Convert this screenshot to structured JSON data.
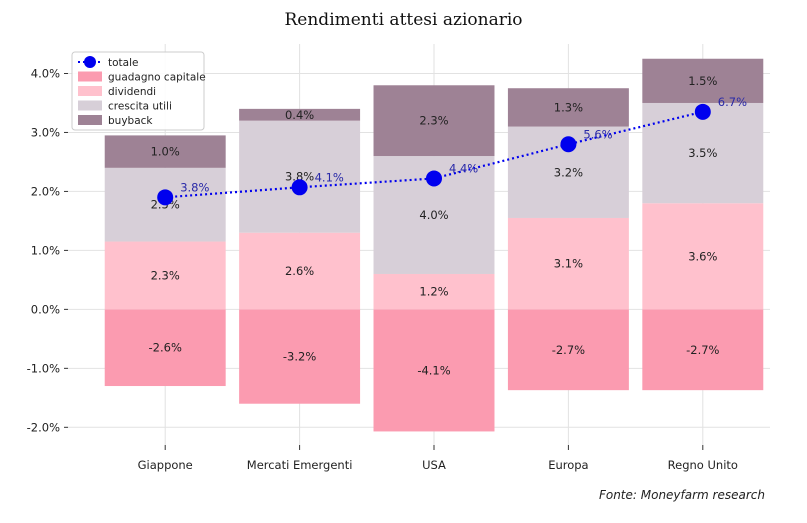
{
  "chart_data": {
    "type": "bar",
    "stacked": true,
    "title": "Rendimenti attesi azionario",
    "source": "Fonte: Moneyfarm research",
    "categories": [
      "Giappone",
      "Mercati Emergenti",
      "USA",
      "Europa",
      "Regno Unito"
    ],
    "ylim": [
      -2.3,
      4.5
    ],
    "yticks": [
      -2.0,
      -1.0,
      0.0,
      1.0,
      2.0,
      3.0,
      4.0
    ],
    "ytick_labels": [
      "-2.0%",
      "-1.0%",
      "0.0%",
      "1.0%",
      "2.0%",
      "3.0%",
      "4.0%"
    ],
    "grid": true,
    "legend_position": "top-left",
    "series": [
      {
        "name": "guadagno capitale",
        "color": "#fb9bb0",
        "values": [
          -1.3,
          -1.6,
          -2.07,
          -1.37,
          -1.37
        ],
        "labels": [
          "-2.6%",
          "-3.2%",
          "-4.1%",
          "-2.7%",
          "-2.7%"
        ]
      },
      {
        "name": "dividendi",
        "color": "#ffc1cd",
        "values": [
          1.15,
          1.3,
          0.6,
          1.55,
          1.8
        ],
        "labels": [
          "2.3%",
          "2.6%",
          "1.2%",
          "3.1%",
          "3.6%"
        ]
      },
      {
        "name": "crescita utili",
        "color": "#d7cfd8",
        "values": [
          1.25,
          1.9,
          2.0,
          1.55,
          1.7
        ],
        "labels": [
          "2.5%",
          "3.8%",
          "4.0%",
          "3.2%",
          "3.5%"
        ]
      },
      {
        "name": "buyback",
        "color": "#9e8295",
        "values": [
          0.55,
          0.2,
          1.2,
          0.65,
          0.75
        ],
        "labels": [
          "1.0%",
          "0.4%",
          "2.3%",
          "1.3%",
          "1.5%"
        ]
      }
    ],
    "line_series": {
      "name": "totale",
      "color": "#0000ee",
      "values": [
        1.9,
        2.07,
        2.22,
        2.8,
        3.35
      ],
      "labels": [
        "3.8%",
        "4.1%",
        "4.4%",
        "5.6%",
        "6.7%"
      ]
    }
  }
}
